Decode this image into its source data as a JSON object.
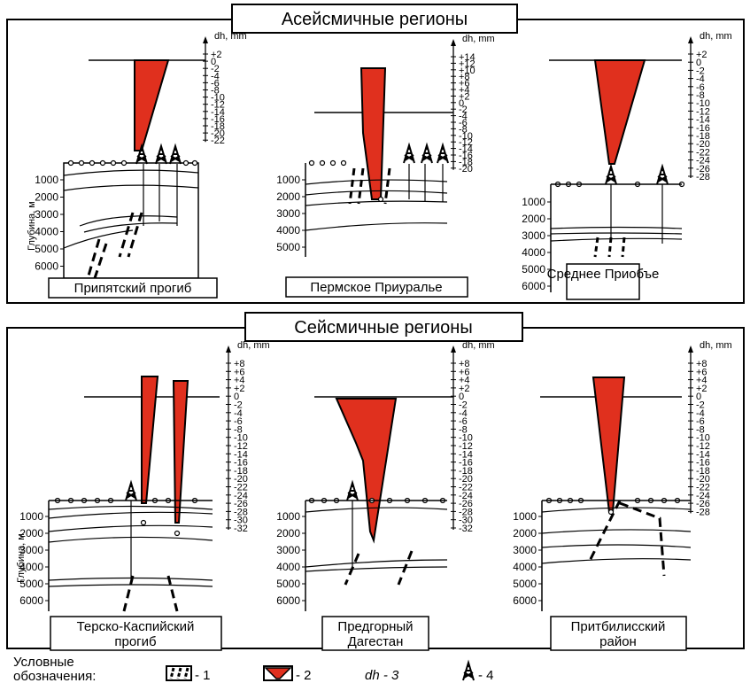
{
  "top_panel": {
    "title": "Асейсмичные регионы",
    "regions": [
      {
        "label": "Припятский прогиб"
      },
      {
        "label": "Пермское Приуралье"
      },
      {
        "label": "Среднее Приобъе"
      }
    ]
  },
  "bottom_panel": {
    "title": "Сейсмичные регионы",
    "regions": [
      {
        "label_line1": "Терско-Каспийский",
        "label_line2": "прогиб"
      },
      {
        "label_line1": "Предгорный",
        "label_line2": "Дагестан"
      },
      {
        "label_line1": "Притбилисский",
        "label_line2": "район"
      }
    ]
  },
  "axis_title_dh": "dh, mm",
  "depth_axis_label": "Глубина, м",
  "scales": {
    "s1": [
      "+2",
      "0",
      "-2",
      "-4",
      "-6",
      "-8",
      "-10",
      "-12",
      "-14",
      "-16",
      "-18",
      "-20",
      "-22"
    ],
    "s2": [
      "+14",
      "+12",
      "+10",
      "+8",
      "+6",
      "+4",
      "+2",
      "0",
      "-2",
      "-4",
      "-6",
      "-8",
      "-10",
      "-12",
      "-14",
      "-16",
      "-18",
      "-20"
    ],
    "s3": [
      "+2",
      "0",
      "-2",
      "-4",
      "-6",
      "-8",
      "-10",
      "-12",
      "-14",
      "-16",
      "-18",
      "-20",
      "-22",
      "-24",
      "-26",
      "-28"
    ],
    "s4": [
      "+8",
      "+6",
      "+4",
      "+2",
      "0",
      "-2",
      "-4",
      "-6",
      "-8",
      "-10",
      "-12",
      "-14",
      "-16",
      "-18",
      "-20",
      "-22",
      "-24",
      "-26",
      "-28",
      "-30",
      "-32"
    ],
    "s5": [
      "+8",
      "+6",
      "+4",
      "+2",
      "0",
      "-2",
      "-4",
      "-6",
      "-8",
      "-10",
      "-12",
      "-14",
      "-16",
      "-18",
      "-20",
      "-22",
      "-24",
      "-26",
      "-28",
      "-30",
      "-32"
    ],
    "s6": [
      "+8",
      "+6",
      "+4",
      "+2",
      "0",
      "-2",
      "-4",
      "-6",
      "-8",
      "-10",
      "-12",
      "-14",
      "-16",
      "-18",
      "-20",
      "-22",
      "-24",
      "-26",
      "-28"
    ]
  },
  "depth_ticks": {
    "d1": [
      "1000",
      "2000",
      "3000",
      "4000",
      "5000",
      "6000"
    ],
    "d2": [
      "1000",
      "2000",
      "3000",
      "4000",
      "5000"
    ],
    "d3": [
      "1000",
      "2000",
      "3000",
      "4000",
      "5000",
      "6000"
    ],
    "d4": [
      "1000",
      "2000",
      "3000",
      "4000",
      "5000",
      "6000"
    ],
    "d5": [
      "1000",
      "2000",
      "3000",
      "4000",
      "5000",
      "6000"
    ],
    "d6": [
      "1000",
      "2000",
      "3000",
      "4000",
      "5000",
      "6000"
    ]
  },
  "legend": {
    "title_line1": "Условные",
    "title_line2": "обозначения:",
    "item1": "- 1",
    "item2": "- 2",
    "item3": "dh - 3",
    "item4": "- 4"
  },
  "colors": {
    "red": "#e0301e",
    "black": "#000000"
  }
}
